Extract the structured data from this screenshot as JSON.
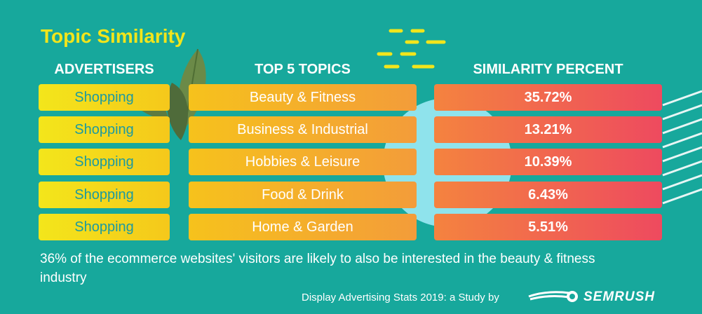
{
  "title": "Topic Similarity",
  "headers": {
    "advertisers": "ADVERTISERS",
    "topics": "TOP 5 TOPICS",
    "similarity": "SIMILARITY PERCENT"
  },
  "rows": [
    {
      "advertiser": "Shopping",
      "topic": "Beauty & Fitness",
      "percent": "35.72%"
    },
    {
      "advertiser": "Shopping",
      "topic": "Business & Industrial",
      "percent": "13.21%"
    },
    {
      "advertiser": "Shopping",
      "topic": "Hobbies & Leisure",
      "percent": "10.39%"
    },
    {
      "advertiser": "Shopping",
      "topic": "Food & Drink",
      "percent": "6.43%"
    },
    {
      "advertiser": "Shopping",
      "topic": "Home & Garden",
      "percent": "5.51%"
    }
  ],
  "note": "36% of the ecommerce websites' visitors are likely to also be interested in the beauty & fitness industry",
  "footer": {
    "source": "Display Advertising Stats 2019: a Study by",
    "brand": "SEMRUSH"
  },
  "colors": {
    "background": "#17a89c",
    "title": "#f2e51b",
    "advertiser_text": "#1c9aa0"
  }
}
